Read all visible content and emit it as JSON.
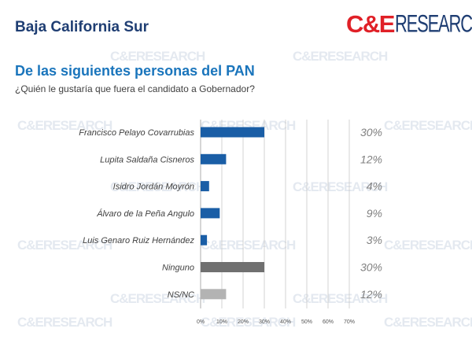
{
  "header": {
    "title": "Baja California Sur"
  },
  "logo": {
    "ce": "C&E",
    "research": "RESEARCH",
    "ce_color": "#e02027",
    "research_color": "#1f3e73"
  },
  "watermark": {
    "text": "C&ERESEARCH"
  },
  "colors": {
    "bar_blue": "#1a5ea6",
    "bar_dark_gray": "#707070",
    "bar_light_gray": "#b3b3b3",
    "grid": "#c8c8c8"
  },
  "chart_data": {
    "type": "bar",
    "orientation": "horizontal",
    "title": "De las siguientes personas del PAN",
    "subtitle": "¿Quién le gustaría que fuera el candidato a Gobernador?",
    "categories": [
      "Francisco Pelayo Covarrubias",
      "Lupita Saldaña Cisneros",
      "Isidro Jordán Moyrón",
      "Álvaro de la Peña Angulo",
      "Luis Genaro Ruiz Hernández",
      "Ninguno",
      "NS/NC"
    ],
    "values": [
      30,
      12,
      4,
      9,
      3,
      30,
      12
    ],
    "value_labels": [
      "30%",
      "12%",
      "4%",
      "9%",
      "3%",
      "30%",
      "12%"
    ],
    "bar_colors": [
      "#1a5ea6",
      "#1a5ea6",
      "#1a5ea6",
      "#1a5ea6",
      "#1a5ea6",
      "#707070",
      "#b3b3b3"
    ],
    "xlim": [
      0,
      70
    ],
    "x_ticks": [
      "0%",
      "10%",
      "20%",
      "30%",
      "40%",
      "50%",
      "60%",
      "70%"
    ],
    "grid": true
  }
}
